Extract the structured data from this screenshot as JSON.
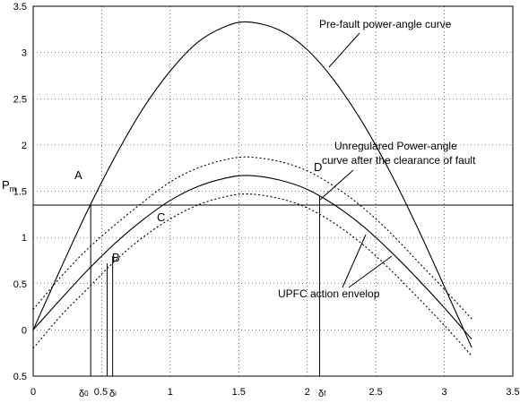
{
  "chart_data": {
    "type": "line",
    "title": "",
    "xlabel": "",
    "ylabel": "",
    "xlim": [
      0,
      3.5
    ],
    "ylim": [
      -0.5,
      3.5
    ],
    "grid": true,
    "x_ticks": [
      "0",
      "0.5",
      "1",
      "1.5",
      "2",
      "2.5",
      "3",
      "3.5"
    ],
    "y_ticks": [
      "-0.5",
      "0",
      "0.5",
      "1",
      "1.5",
      "2",
      "2.5",
      "3",
      "3.5"
    ],
    "pm_label": "Pm",
    "series": [
      {
        "style": "solid",
        "x": [
          0,
          0.2,
          0.4,
          0.6,
          0.8,
          1.0,
          1.2,
          1.4,
          1.571,
          1.8,
          2.0,
          2.2,
          2.4,
          2.6,
          2.8,
          3.0,
          3.2
        ],
        "values": [
          0,
          0.66,
          1.3,
          1.88,
          2.39,
          2.8,
          3.11,
          3.28,
          3.33,
          3.24,
          3.03,
          2.69,
          2.25,
          1.72,
          1.12,
          0.47,
          -0.19
        ]
      },
      {
        "style": "solid",
        "x": [
          0,
          0.2,
          0.4,
          0.6,
          0.8,
          1.0,
          1.2,
          1.4,
          1.571,
          1.8,
          2.0,
          2.2,
          2.4,
          2.6,
          2.8,
          3.0,
          3.2
        ],
        "values": [
          0,
          0.33,
          0.65,
          0.94,
          1.19,
          1.4,
          1.55,
          1.64,
          1.67,
          1.62,
          1.52,
          1.35,
          1.13,
          0.86,
          0.56,
          0.24,
          -0.1
        ]
      },
      {
        "style": "dashed",
        "x": [
          0,
          0.2,
          0.4,
          0.6,
          0.8,
          1.0,
          1.2,
          1.4,
          1.571,
          1.8,
          2.0,
          2.2,
          2.4,
          2.6,
          2.8,
          3.0,
          3.2
        ],
        "values": [
          0.22,
          0.57,
          0.88,
          1.14,
          1.38,
          1.6,
          1.75,
          1.84,
          1.87,
          1.82,
          1.72,
          1.55,
          1.33,
          1.06,
          0.75,
          0.44,
          0.12
        ]
      },
      {
        "style": "dashed",
        "x": [
          0,
          0.2,
          0.4,
          0.6,
          0.8,
          1.0,
          1.2,
          1.4,
          1.571,
          1.8,
          2.0,
          2.2,
          2.4,
          2.6,
          2.8,
          3.0,
          3.2
        ],
        "values": [
          -0.2,
          0.15,
          0.45,
          0.75,
          1.0,
          1.2,
          1.35,
          1.44,
          1.47,
          1.42,
          1.32,
          1.15,
          0.93,
          0.66,
          0.36,
          0.05,
          -0.28
        ]
      }
    ],
    "pm": 1.35,
    "points": [
      {
        "label": "A",
        "x": 0.42,
        "y": 1.35
      },
      {
        "label": "B",
        "x": 0.57,
        "y": 0.85
      },
      {
        "label": "C",
        "x": 0.95,
        "y": 1.2
      },
      {
        "label": "D",
        "x": 2.09,
        "y": 1.45
      }
    ],
    "verticals": [
      {
        "x": 0.42,
        "y": 1.35,
        "label": "δ0"
      },
      {
        "x": 0.54,
        "y": 0.72,
        "label": ""
      },
      {
        "x": 0.58,
        "y": 0.8,
        "label": "δi"
      },
      {
        "x": 2.09,
        "y": 1.45,
        "label": "δf"
      }
    ],
    "annotations": [
      {
        "id": "prefault",
        "text": "Pre-fault power-angle curve"
      },
      {
        "id": "unreg1",
        "text": "Unregulared Power-angle"
      },
      {
        "id": "unreg2",
        "text": "curve after the clearance of fault"
      },
      {
        "id": "upfc",
        "text": "UPFC action envelop"
      }
    ]
  }
}
